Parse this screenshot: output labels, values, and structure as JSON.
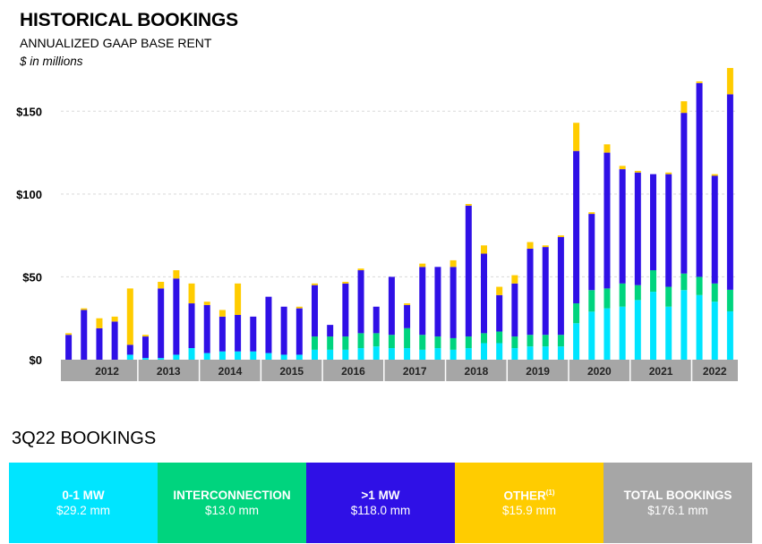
{
  "header": {
    "title": "HISTORICAL BOOKINGS",
    "subtitle": "ANNUALIZED GAAP BASE RENT",
    "units": "$ in millions"
  },
  "colors": {
    "mw_0_1": "#00e5ff",
    "interconnection": "#00d47e",
    "mw_gt_1": "#2f10e6",
    "other": "#ffcc00",
    "total": "#a6a6a6",
    "axis_band": "#a6a6a6"
  },
  "chart_data": {
    "type": "bar",
    "stacked": true,
    "title": "HISTORICAL BOOKINGS",
    "subtitle": "ANNUALIZED GAAP BASE RENT",
    "ylabel": "$ in millions",
    "ylim": [
      0,
      175
    ],
    "yticks": [
      0,
      50,
      100,
      150
    ],
    "ytick_labels": [
      "$0",
      "$50",
      "$100",
      "$150"
    ],
    "grid": true,
    "x": [
      "2011 Q4",
      "2012 Q1",
      "2012 Q2",
      "2012 Q3",
      "2012 Q4",
      "2013 Q1",
      "2013 Q2",
      "2013 Q3",
      "2013 Q4",
      "2014 Q1",
      "2014 Q2",
      "2014 Q3",
      "2014 Q4",
      "2015 Q1",
      "2015 Q2",
      "2015 Q3",
      "2015 Q4",
      "2016 Q1",
      "2016 Q2",
      "2016 Q3",
      "2016 Q4",
      "2017 Q1",
      "2017 Q2",
      "2017 Q3",
      "2017 Q4",
      "2018 Q1",
      "2018 Q2",
      "2018 Q3",
      "2018 Q4",
      "2019 Q1",
      "2019 Q2",
      "2019 Q3",
      "2019 Q4",
      "2020 Q1",
      "2020 Q2",
      "2020 Q3",
      "2020 Q4",
      "2021 Q1",
      "2021 Q2",
      "2021 Q3",
      "2021 Q4",
      "2022 Q1",
      "2022 Q2",
      "2022 Q3"
    ],
    "year_labels": [
      "2012",
      "2013",
      "2014",
      "2015",
      "2016",
      "2017",
      "2018",
      "2019",
      "2020",
      "2021",
      "2022"
    ],
    "series": [
      {
        "name": "0-1 MW",
        "values": [
          0,
          0,
          0,
          0,
          3,
          1,
          1,
          3,
          7,
          4,
          5,
          5,
          5,
          4,
          3,
          3,
          6,
          6,
          6,
          7,
          8,
          7,
          7,
          6,
          7,
          6,
          7,
          10,
          10,
          7,
          8,
          8,
          8,
          22,
          29,
          31,
          32,
          36,
          41,
          32,
          42,
          39,
          35,
          29.2
        ]
      },
      {
        "name": "Interconnection",
        "values": [
          0,
          0,
          0,
          0,
          0,
          0,
          0,
          0,
          0,
          0,
          0,
          0,
          0,
          0,
          0,
          0,
          8,
          8,
          8,
          9,
          8,
          8,
          12,
          9,
          7,
          7,
          7,
          6,
          7,
          7,
          7,
          7,
          7,
          12,
          13,
          12,
          14,
          9,
          13,
          12,
          10,
          11,
          11,
          13.0
        ]
      },
      {
        "name": ">1 MW",
        "values": [
          15,
          30,
          19,
          23,
          6,
          13,
          42,
          46,
          27,
          29,
          21,
          22,
          21,
          34,
          29,
          28,
          31,
          7,
          32,
          38,
          16,
          35,
          14,
          41,
          42,
          43,
          79,
          48,
          22,
          32,
          52,
          53,
          59,
          92,
          46,
          82,
          69,
          68,
          58,
          68,
          97,
          117,
          65,
          118.0
        ]
      },
      {
        "name": "Other",
        "values": [
          1,
          1,
          6,
          3,
          34,
          1,
          4,
          5,
          12,
          2,
          4,
          19,
          0,
          0,
          0,
          1,
          1,
          0,
          1,
          1,
          0,
          0,
          1,
          2,
          0,
          4,
          1,
          5,
          5,
          5,
          4,
          1,
          1,
          17,
          1,
          5,
          2,
          1,
          0,
          1,
          7,
          1,
          1,
          15.9
        ]
      }
    ]
  },
  "bookings_section": {
    "title": "3Q22 BOOKINGS",
    "boxes": [
      {
        "label": "0-1 MW",
        "value": "$29.2 mm",
        "color": "#00e5ff",
        "text_color": "#ffffff"
      },
      {
        "label": "INTERCONNECTION",
        "value": "$13.0 mm",
        "color": "#00d47e",
        "text_color": "#ffffff"
      },
      {
        "label": ">1 MW",
        "value": "$118.0 mm",
        "color": "#2f10e6",
        "text_color": "#ffffff"
      },
      {
        "label": "OTHER",
        "footnote": "(1)",
        "value": "$15.9 mm",
        "color": "#ffcc00",
        "text_color": "#ffffff"
      },
      {
        "label": "TOTAL BOOKINGS",
        "value": "$176.1 mm",
        "color": "#a6a6a6",
        "text_color": "#ffffff"
      }
    ]
  }
}
